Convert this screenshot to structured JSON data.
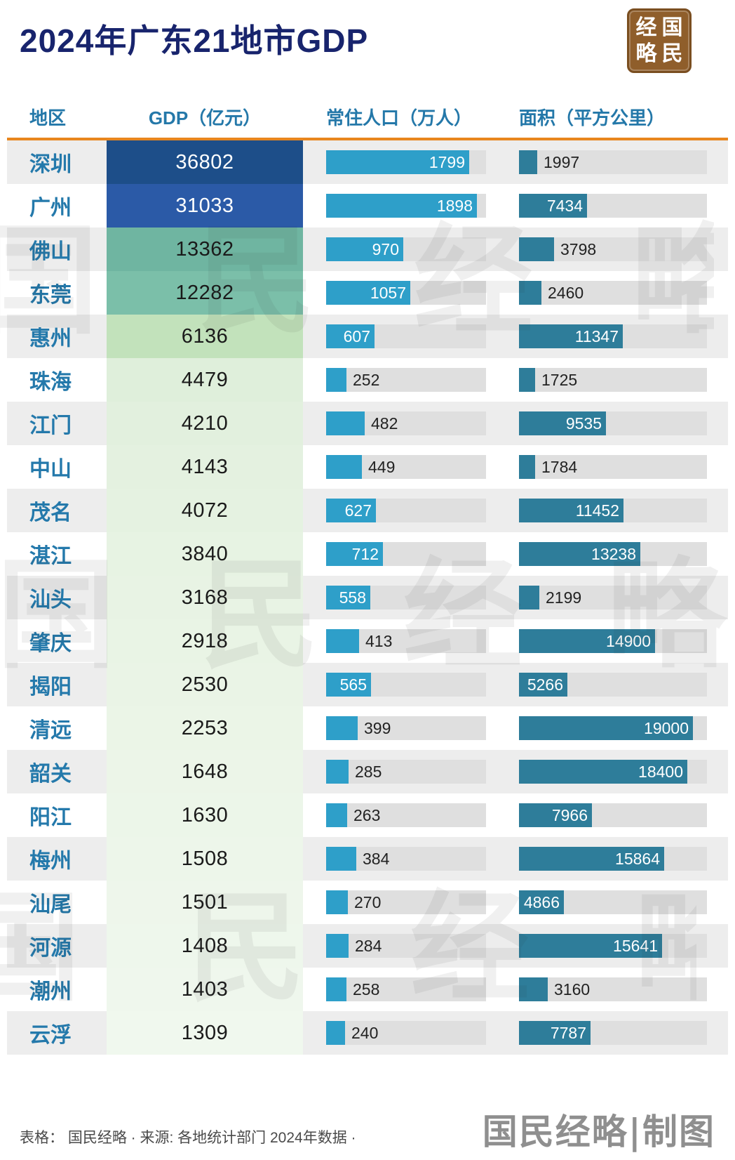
{
  "title": "2024年广东21地市GDP",
  "logo": {
    "chars": [
      "经",
      "国",
      "略",
      "民"
    ]
  },
  "columns": {
    "region": "地区",
    "gdp": "GDP（亿元）",
    "population": "常住人口（万人）",
    "area": "面积（平方公里）"
  },
  "watermark": "国民经略",
  "footer": {
    "left": "表格： 国民经略 · 来源: 各地统计部门 2024年数据 ·",
    "right": "国民经略|制图"
  },
  "colors": {
    "title": "#18246d",
    "header_text": "#2478a9",
    "accent_line": "#e8861e",
    "pop_bar": "#2e9fc9",
    "area_bar": "#2e7d9a",
    "logo_bg": "#8f5e2b"
  },
  "chart_data": {
    "type": "table",
    "title": "2024年广东21地市GDP",
    "columns": [
      "地区",
      "GDP（亿元）",
      "常住人口（万人）",
      "面积（平方公里）"
    ],
    "max": {
      "population": 1898,
      "area": 19000
    },
    "rows": [
      {
        "city": "深圳",
        "gdp": 36802,
        "population": 1799,
        "area": 1997,
        "gdp_bg": "#1d4e89",
        "gdp_color": "#ffffff"
      },
      {
        "city": "广州",
        "gdp": 31033,
        "population": 1898,
        "area": 7434,
        "gdp_bg": "#2b5aa7",
        "gdp_color": "#ffffff"
      },
      {
        "city": "佛山",
        "gdp": 13362,
        "population": 970,
        "area": 3798,
        "gdp_bg": "#6fb5a1",
        "gdp_color": "#1a1a1a"
      },
      {
        "city": "东莞",
        "gdp": 12282,
        "population": 1057,
        "area": 2460,
        "gdp_bg": "#7bbfa9",
        "gdp_color": "#1a1a1a"
      },
      {
        "city": "惠州",
        "gdp": 6136,
        "population": 607,
        "area": 11347,
        "gdp_bg": "#c2e2bb",
        "gdp_color": "#1a1a1a"
      },
      {
        "city": "珠海",
        "gdp": 4479,
        "population": 252,
        "area": 1725,
        "gdp_bg": "#dfefdb",
        "gdp_color": "#1a1a1a"
      },
      {
        "city": "江门",
        "gdp": 4210,
        "population": 482,
        "area": 9535,
        "gdp_bg": "#e2f0de",
        "gdp_color": "#1a1a1a"
      },
      {
        "city": "中山",
        "gdp": 4143,
        "population": 449,
        "area": 1784,
        "gdp_bg": "#e4f1e0",
        "gdp_color": "#1a1a1a"
      },
      {
        "city": "茂名",
        "gdp": 4072,
        "population": 627,
        "area": 11452,
        "gdp_bg": "#e5f2e1",
        "gdp_color": "#1a1a1a"
      },
      {
        "city": "湛江",
        "gdp": 3840,
        "population": 712,
        "area": 13238,
        "gdp_bg": "#e7f3e3",
        "gdp_color": "#1a1a1a"
      },
      {
        "city": "汕头",
        "gdp": 3168,
        "population": 558,
        "area": 2199,
        "gdp_bg": "#e8f3e4",
        "gdp_color": "#1a1a1a"
      },
      {
        "city": "肇庆",
        "gdp": 2918,
        "population": 413,
        "area": 14900,
        "gdp_bg": "#e9f4e5",
        "gdp_color": "#1a1a1a"
      },
      {
        "city": "揭阳",
        "gdp": 2530,
        "population": 565,
        "area": 5266,
        "gdp_bg": "#eaf4e6",
        "gdp_color": "#1a1a1a"
      },
      {
        "city": "清远",
        "gdp": 2253,
        "population": 399,
        "area": 19000,
        "gdp_bg": "#ebf5e7",
        "gdp_color": "#1a1a1a"
      },
      {
        "city": "韶关",
        "gdp": 1648,
        "population": 285,
        "area": 18400,
        "gdp_bg": "#ecf5e8",
        "gdp_color": "#1a1a1a"
      },
      {
        "city": "阳江",
        "gdp": 1630,
        "population": 263,
        "area": 7966,
        "gdp_bg": "#ecf6e9",
        "gdp_color": "#1a1a1a"
      },
      {
        "city": "梅州",
        "gdp": 1508,
        "population": 384,
        "area": 15864,
        "gdp_bg": "#edf6ea",
        "gdp_color": "#1a1a1a"
      },
      {
        "city": "汕尾",
        "gdp": 1501,
        "population": 270,
        "area": 4866,
        "gdp_bg": "#eef6eb",
        "gdp_color": "#1a1a1a"
      },
      {
        "city": "河源",
        "gdp": 1408,
        "population": 284,
        "area": 15641,
        "gdp_bg": "#eef7ec",
        "gdp_color": "#1a1a1a"
      },
      {
        "city": "潮州",
        "gdp": 1403,
        "population": 258,
        "area": 3160,
        "gdp_bg": "#eff7ed",
        "gdp_color": "#1a1a1a"
      },
      {
        "city": "云浮",
        "gdp": 1309,
        "population": 240,
        "area": 7787,
        "gdp_bg": "#f0f8ee",
        "gdp_color": "#1a1a1a"
      }
    ]
  }
}
